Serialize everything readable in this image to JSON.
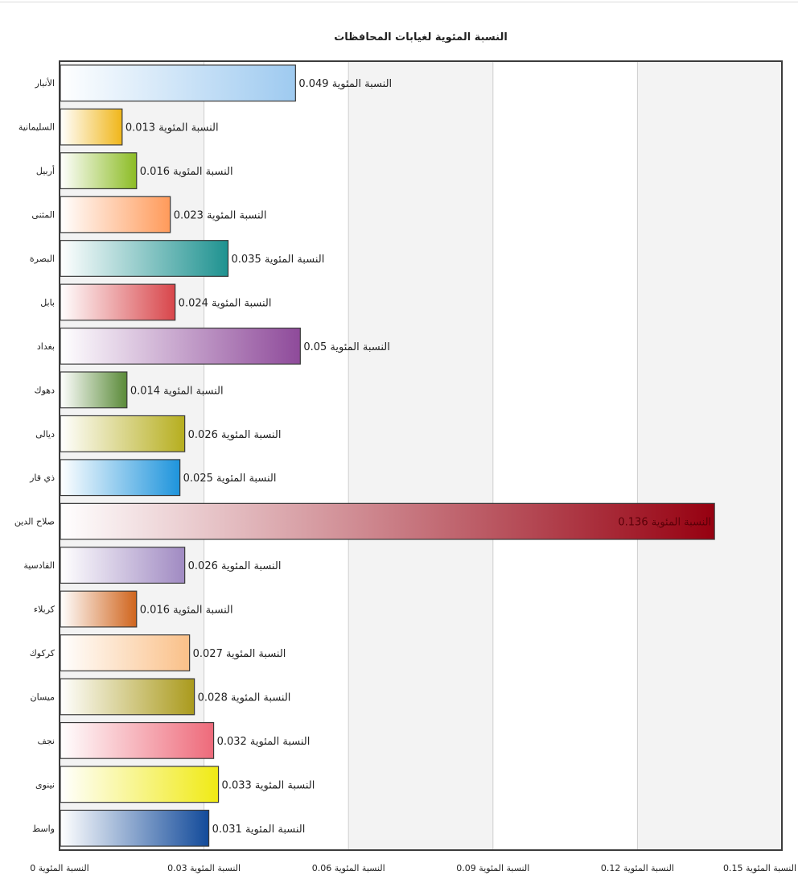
{
  "chart_data": {
    "type": "bar",
    "orientation": "horizontal",
    "title": "النسبة المئوية لغيابات المحافظات",
    "xlabel": "",
    "ylabel": "",
    "xlim": [
      0,
      0.15
    ],
    "x_ticks": [
      0,
      0.03,
      0.06,
      0.09,
      0.12,
      0.15
    ],
    "tick_label_suffix": "النسبة المئوية",
    "value_label_suffix": "النسبة المئوية",
    "grid": true,
    "categories": [
      "الأنبار",
      "السليمانية",
      "أربيل",
      "المثنى",
      "البصرة",
      "بابل",
      "بغداد",
      "دهوك",
      "ديالى",
      "ذي قار",
      "صلاح الدين",
      "القادسية",
      "كربلاء",
      "كركوك",
      "ميسان",
      "نجف",
      "نينوى",
      "واسط"
    ],
    "values": [
      0.049,
      0.013,
      0.016,
      0.023,
      0.035,
      0.024,
      0.05,
      0.014,
      0.026,
      0.025,
      0.136,
      0.026,
      0.016,
      0.027,
      0.028,
      0.032,
      0.033,
      0.031
    ],
    "colors": [
      "#9ecaf0",
      "#f0b619",
      "#8cbc24",
      "#ff9a5a",
      "#1e9290",
      "#d8454a",
      "#8e4a9a",
      "#5a8a38",
      "#b6ae1e",
      "#1e94dc",
      "#960010",
      "#a08ac2",
      "#d0641c",
      "#fac088",
      "#aa9a1c",
      "#ee6a7a",
      "#f0ea14",
      "#124a9a"
    ]
  }
}
